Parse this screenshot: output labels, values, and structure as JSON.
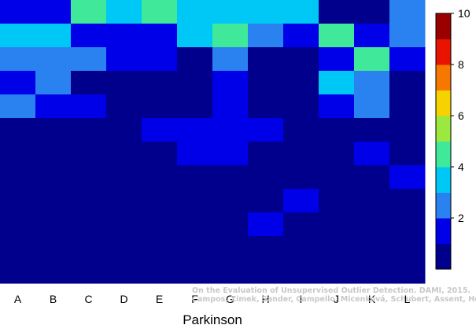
{
  "chart_data": {
    "type": "heatmap",
    "xlabel": "Parkinson",
    "ylabel": "",
    "columns": [
      "A",
      "B",
      "C",
      "D",
      "E",
      "F",
      "G",
      "H",
      "I",
      "J",
      "K",
      "L"
    ],
    "rows": 12,
    "value_range": [
      0,
      10
    ],
    "colorbar": {
      "ticks": [
        2,
        4,
        6,
        8,
        10
      ],
      "colors": [
        "#00008c",
        "#0000e8",
        "#2a82f0",
        "#00c8f6",
        "#40e89a",
        "#9ae840",
        "#f6d200",
        "#f67800",
        "#e81400",
        "#9a0000"
      ]
    },
    "grid": false,
    "cells": [
      [
        1,
        1,
        4,
        3,
        4,
        3,
        3,
        3,
        3,
        0,
        0,
        2
      ],
      [
        3,
        3,
        1,
        1,
        1,
        3,
        4,
        2,
        1,
        4,
        1,
        2
      ],
      [
        2,
        2,
        2,
        1,
        1,
        0,
        2,
        0,
        0,
        1,
        4,
        1
      ],
      [
        1,
        2,
        0,
        0,
        0,
        0,
        1,
        0,
        0,
        3,
        2,
        0
      ],
      [
        2,
        1,
        1,
        0,
        0,
        0,
        1,
        0,
        0,
        1,
        2,
        0
      ],
      [
        0,
        0,
        0,
        0,
        1,
        1,
        1,
        1,
        0,
        0,
        0,
        0
      ],
      [
        0,
        0,
        0,
        0,
        0,
        1,
        1,
        0,
        0,
        0,
        1,
        0
      ],
      [
        0,
        0,
        0,
        0,
        0,
        0,
        0,
        0,
        0,
        0,
        0,
        1
      ],
      [
        0,
        0,
        0,
        0,
        0,
        0,
        0,
        0,
        1,
        0,
        0,
        0
      ],
      [
        0,
        0,
        0,
        0,
        0,
        0,
        0,
        1,
        0,
        0,
        0,
        0
      ],
      [
        0,
        0,
        0,
        0,
        0,
        0,
        0,
        0,
        0,
        0,
        0,
        0
      ],
      [
        0,
        0,
        0,
        0,
        0,
        0,
        0,
        0,
        0,
        0,
        0,
        0
      ]
    ]
  },
  "watermark": {
    "line1": "On the Evaluation of Unsupervised Outlier Detection. DAMI, 2015.",
    "line2": "Campos, Zimek, Sander, Campello, Micenková, Schubert, Assent, Houle"
  }
}
